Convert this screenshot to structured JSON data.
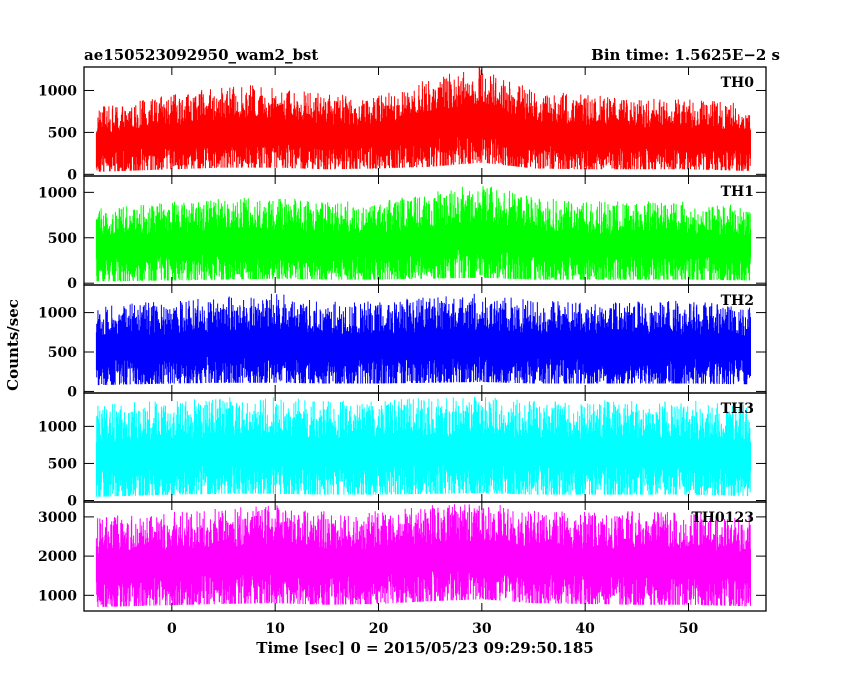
{
  "header": {
    "obs_id": "ae150523092950_wam2_bst",
    "bin_time": "Bin time: 1.5625E−2 s"
  },
  "chart_data": {
    "type": "line",
    "xlabel": "Time [sec] 0 = 2015/05/23 09:29:50.185",
    "ylabel": "Counts/sec",
    "xlim": [
      -8.5,
      57.5
    ],
    "x_ticks": [
      0,
      10,
      20,
      30,
      40,
      50
    ],
    "x_tick_labels": [
      "0",
      "10",
      "20",
      "30",
      "40",
      "50"
    ],
    "data_x_range": [
      -7.3,
      56.0
    ],
    "bin_time_s": 0.015625,
    "grid": false,
    "panels": [
      {
        "name": "TH0",
        "color": "#ff0000",
        "ylim": [
          -20,
          1280
        ],
        "y_ticks": [
          0,
          500,
          1000
        ],
        "y_tick_labels": [
          "0",
          "500",
          "1000"
        ],
        "envelope": {
          "x": [
            -7.3,
            0,
            5,
            10,
            15,
            20,
            25,
            30,
            35,
            40,
            45,
            50,
            56
          ],
          "min": [
            30,
            60,
            80,
            80,
            60,
            70,
            90,
            140,
            70,
            60,
            60,
            60,
            40
          ],
          "max": [
            800,
            950,
            1050,
            1080,
            950,
            950,
            1150,
            1300,
            1000,
            950,
            900,
            900,
            850
          ]
        }
      },
      {
        "name": "TH1",
        "color": "#00ff00",
        "ylim": [
          -20,
          1180
        ],
        "y_ticks": [
          0,
          500,
          1000
        ],
        "y_tick_labels": [
          "0",
          "500",
          "1000"
        ],
        "envelope": {
          "x": [
            -7.3,
            0,
            5,
            10,
            15,
            20,
            25,
            30,
            35,
            40,
            45,
            50,
            56
          ],
          "min": [
            20,
            30,
            40,
            50,
            40,
            40,
            50,
            60,
            40,
            40,
            40,
            40,
            30
          ],
          "max": [
            820,
            900,
            950,
            950,
            900,
            900,
            1000,
            1100,
            950,
            900,
            900,
            900,
            850
          ]
        }
      },
      {
        "name": "TH2",
        "color": "#0000ff",
        "ylim": [
          -20,
          1350
        ],
        "y_ticks": [
          0,
          500,
          1000
        ],
        "y_tick_labels": [
          "0",
          "500",
          "1000"
        ],
        "envelope": {
          "x": [
            -7.3,
            0,
            5,
            10,
            15,
            20,
            25,
            30,
            35,
            40,
            45,
            50,
            56
          ],
          "min": [
            80,
            100,
            110,
            110,
            100,
            100,
            110,
            120,
            100,
            100,
            100,
            100,
            90
          ],
          "max": [
            1100,
            1150,
            1200,
            1250,
            1150,
            1150,
            1200,
            1250,
            1150,
            1150,
            1150,
            1150,
            1100
          ]
        }
      },
      {
        "name": "TH3",
        "color": "#00ffff",
        "ylim": [
          -20,
          1450
        ],
        "y_ticks": [
          0,
          500,
          1000
        ],
        "y_tick_labels": [
          "0",
          "500",
          "1000"
        ],
        "envelope": {
          "x": [
            -7.3,
            0,
            5,
            10,
            15,
            20,
            25,
            30,
            35,
            40,
            45,
            50,
            56
          ],
          "min": [
            50,
            80,
            90,
            90,
            80,
            80,
            90,
            100,
            80,
            80,
            80,
            80,
            60
          ],
          "max": [
            1300,
            1350,
            1400,
            1400,
            1350,
            1350,
            1400,
            1400,
            1350,
            1350,
            1350,
            1350,
            1300
          ]
        }
      },
      {
        "name": "TH0123",
        "color": "#ff00ff",
        "ylim": [
          600,
          3380
        ],
        "y_ticks": [
          1000,
          2000,
          3000
        ],
        "y_tick_labels": [
          "1000",
          "2000",
          "3000"
        ],
        "envelope": {
          "x": [
            -7.3,
            0,
            5,
            10,
            15,
            20,
            25,
            30,
            35,
            40,
            45,
            50,
            56
          ],
          "min": [
            700,
            750,
            780,
            800,
            760,
            780,
            850,
            900,
            800,
            780,
            760,
            760,
            720
          ],
          "max": [
            3000,
            3150,
            3250,
            3300,
            3150,
            3150,
            3300,
            3380,
            3200,
            3150,
            3150,
            3150,
            3050
          ]
        }
      }
    ]
  }
}
